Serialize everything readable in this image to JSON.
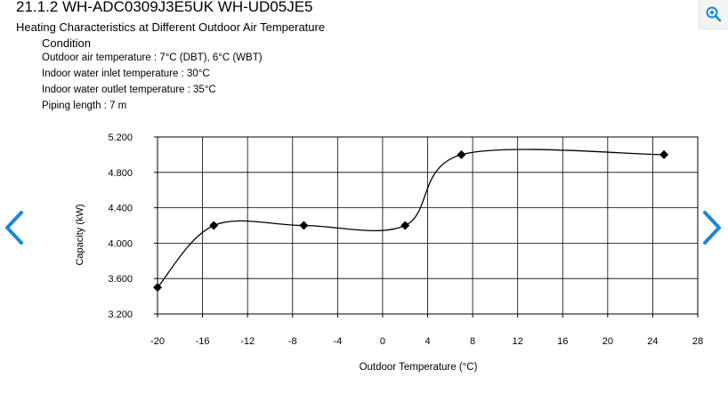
{
  "header": {
    "heading": "21.1.2 WH-ADC0309J3E5UK WH-UD05JE5",
    "subtitle": "Heating Characteristics at Different Outdoor Air Temperature"
  },
  "conditions": {
    "title": "Condition",
    "lines": [
      "Outdoor air temperature : 7°C (DBT), 6°C (WBT)",
      "Indoor water inlet temperature : 30°C",
      "Indoor water outlet temperature : 35°C",
      "Piping length : 7 m"
    ]
  },
  "icons": {
    "zoom": "zoom-in-icon",
    "prev": "chevron-left-icon",
    "next": "chevron-right-icon",
    "arrow_color": "#1a8ad4"
  },
  "chart_data": {
    "type": "line",
    "title": "",
    "xlabel": "Outdoor Temperature (°C)",
    "ylabel": "Capacity (kW)",
    "xlim": [
      -20,
      28
    ],
    "ylim": [
      3.2,
      5.2
    ],
    "xticks": [
      -20,
      -16,
      -12,
      -8,
      -4,
      0,
      4,
      8,
      12,
      16,
      20,
      24,
      28
    ],
    "xtick_labels": [
      "-20",
      "-16",
      "-12",
      "-8",
      "-4",
      "0",
      "4",
      "8",
      "12",
      "16",
      "20",
      "24",
      "28"
    ],
    "yticks": [
      3.2,
      3.6,
      4.0,
      4.4,
      4.8,
      5.2
    ],
    "ytick_labels": [
      "3.200",
      "3.600",
      "4.000",
      "4.400",
      "4.800",
      "5.200"
    ],
    "grid": true,
    "legend": false,
    "marker": "diamond",
    "smooth": true,
    "series": [
      {
        "x": [
          -20,
          -15,
          -7,
          2,
          7,
          25
        ],
        "y": [
          3.5,
          4.2,
          4.2,
          4.2,
          5.0,
          5.0
        ]
      }
    ]
  }
}
